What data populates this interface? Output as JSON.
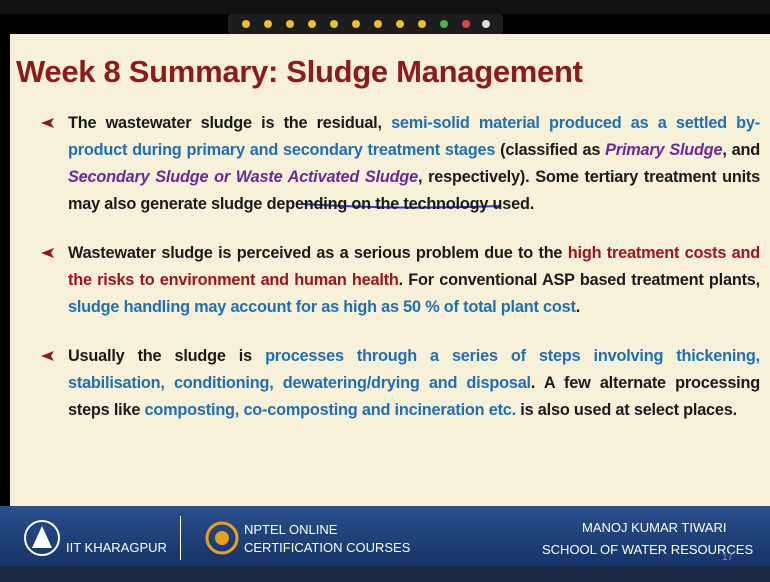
{
  "title": "Week 8 Summary: Sludge Management",
  "bullets": [
    {
      "segments": [
        {
          "text": "The wastewater sludge is the residual, ",
          "color": "#1a1a1a"
        },
        {
          "text": "semi-solid material produced as a settled by-product during primary and secondary treatment stages",
          "color": "#1f6fb5"
        },
        {
          "text": " (classified as ",
          "color": "#1a1a1a"
        },
        {
          "text": "Primary Sludge",
          "color": "#6a2a9a",
          "italic": true
        },
        {
          "text": ", and ",
          "color": "#1a1a1a"
        },
        {
          "text": "Secondary Sludge or Waste Activated Sludge",
          "color": "#6a2a9a",
          "italic": true
        },
        {
          "text": ", respectively). Some tertiary treatment units may also generate sludge depending on the technology used.",
          "color": "#1a1a1a"
        }
      ]
    },
    {
      "segments": [
        {
          "text": "Wastewater sludge is perceived as a serious problem due to the ",
          "color": "#1a1a1a"
        },
        {
          "text": "high treatment costs and the risks to environment and human health",
          "color": "#a0141e"
        },
        {
          "text": ". For conventional ASP based treatment plants, ",
          "color": "#1a1a1a"
        },
        {
          "text": "sludge handling may account for as high as 50 % of total plant cost",
          "color": "#1f6fb5"
        },
        {
          "text": ".",
          "color": "#1a1a1a"
        }
      ]
    },
    {
      "segments": [
        {
          "text": "Usually the sludge is ",
          "color": "#1a1a1a"
        },
        {
          "text": "processes through a series of steps involving thickening, stabilisation, conditioning, dewatering/drying and disposal",
          "color": "#1f6fb5"
        },
        {
          "text": ". A few alternate processing steps like ",
          "color": "#1a1a1a"
        },
        {
          "text": "composting, co-composting and incineration etc.",
          "color": "#1f6fb5"
        },
        {
          "text": " is also used at select places.",
          "color": "#1a1a1a"
        }
      ]
    }
  ],
  "footer": {
    "institute": "IIT KHARAGPUR",
    "nptel_line1": "NPTEL ONLINE",
    "nptel_line2": "CERTIFICATION COURSES",
    "author": "MANOJ KUMAR TIWARI",
    "school": "SCHOOL OF WATER RESOURCES",
    "page": "17"
  }
}
